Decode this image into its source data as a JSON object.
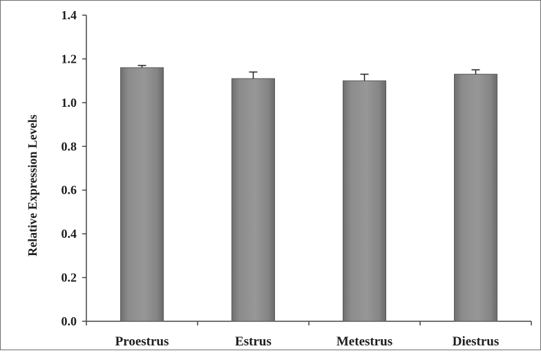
{
  "chart_data": {
    "type": "bar",
    "title": "",
    "xlabel": "",
    "ylabel": "Relative Expression Levels",
    "categories": [
      "Proestrus",
      "Estrus",
      "Metestrus",
      "Diestrus"
    ],
    "values": [
      1.16,
      1.11,
      1.1,
      1.13
    ],
    "errors": [
      0.01,
      0.03,
      0.03,
      0.02
    ],
    "ylim": [
      0,
      1.4
    ],
    "yticks": [
      "0.0",
      "0.2",
      "0.4",
      "0.6",
      "0.8",
      "1.0",
      "1.2",
      "1.4"
    ],
    "grid": false,
    "legend": "none",
    "colors": {
      "bar": "#8a8a8a",
      "bar_highlight": "#a9a9a9",
      "axis": "#444444",
      "text": "#1e1e1e"
    }
  }
}
